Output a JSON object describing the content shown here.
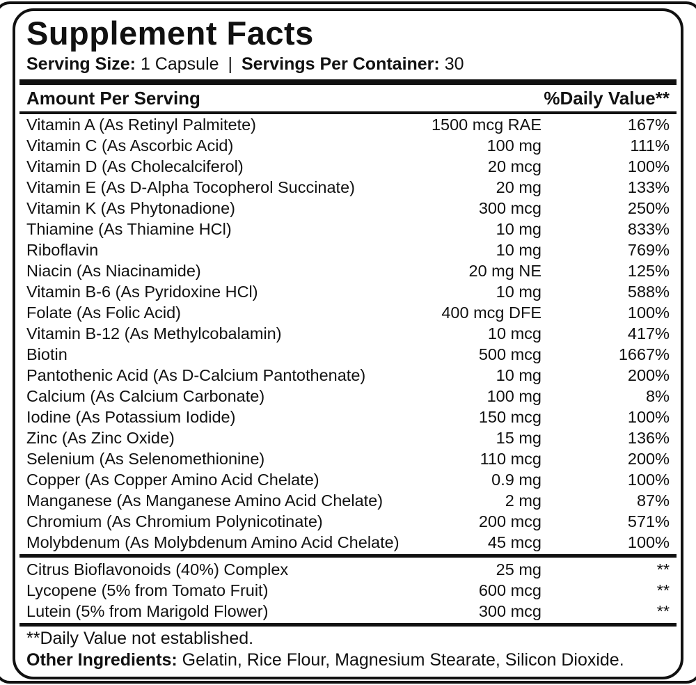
{
  "title": "Supplement Facts",
  "serving": {
    "size_label": "Serving Size:",
    "size_value": "1 Capsule",
    "separator": "|",
    "container_label": "Servings Per Container:",
    "container_value": "30"
  },
  "table": {
    "header_left": "Amount Per Serving",
    "header_right": "%Daily Value**",
    "nutrients": [
      {
        "name": "Vitamin A (As Retinyl Palmitete)",
        "amount": "1500 mcg RAE",
        "dv": "167%"
      },
      {
        "name": "Vitamin C (As Ascorbic Acid)",
        "amount": "100 mg",
        "dv": "111%"
      },
      {
        "name": "Vitamin D (As Cholecalciferol)",
        "amount": "20 mcg",
        "dv": "100%"
      },
      {
        "name": "Vitamin E (As D-Alpha Tocopherol Succinate)",
        "amount": "20 mg",
        "dv": "133%"
      },
      {
        "name": "Vitamin K (As Phytonadione)",
        "amount": "300 mcg",
        "dv": "250%"
      },
      {
        "name": "Thiamine (As Thiamine HCl)",
        "amount": "10 mg",
        "dv": "833%"
      },
      {
        "name": "Riboflavin",
        "amount": "10 mg",
        "dv": "769%"
      },
      {
        "name": "Niacin (As Niacinamide)",
        "amount": "20 mg NE",
        "dv": "125%"
      },
      {
        "name": "Vitamin B-6 (As Pyridoxine HCl)",
        "amount": "10 mg",
        "dv": "588%"
      },
      {
        "name": "Folate (As Folic Acid)",
        "amount": "400 mcg DFE",
        "dv": "100%"
      },
      {
        "name": "Vitamin B-12 (As Methylcobalamin)",
        "amount": "10 mcg",
        "dv": "417%"
      },
      {
        "name": "Biotin",
        "amount": "500 mcg",
        "dv": "1667%"
      },
      {
        "name": "Pantothenic Acid (As D-Calcium Pantothenate)",
        "amount": "10 mg",
        "dv": "200%"
      },
      {
        "name": "Calcium (As Calcium Carbonate)",
        "amount": "100 mg",
        "dv": "8%"
      },
      {
        "name": "Iodine (As Potassium Iodide)",
        "amount": "150 mcg",
        "dv": "100%"
      },
      {
        "name": "Zinc (As Zinc Oxide)",
        "amount": "15 mg",
        "dv": "136%"
      },
      {
        "name": "Selenium (As Selenomethionine)",
        "amount": "110 mcg",
        "dv": "200%"
      },
      {
        "name": "Copper (As Copper Amino Acid Chelate)",
        "amount": "0.9 mg",
        "dv": "100%"
      },
      {
        "name": "Manganese (As Manganese Amino Acid Chelate)",
        "amount": "2 mg",
        "dv": "87%"
      },
      {
        "name": "Chromium (As Chromium Polynicotinate)",
        "amount": "200 mcg",
        "dv": "571%"
      },
      {
        "name": "Molybdenum (As Molybdenum Amino Acid Chelate)",
        "amount": "45 mcg",
        "dv": "100%"
      }
    ],
    "botanicals": [
      {
        "name": "Citrus Bioflavonoids (40%) Complex",
        "amount": "25 mg",
        "dv": "**"
      },
      {
        "name": "Lycopene (5% from Tomato Fruit)",
        "amount": "600 mcg",
        "dv": "**"
      },
      {
        "name": "Lutein (5% from Marigold Flower)",
        "amount": "300 mcg",
        "dv": "**"
      }
    ]
  },
  "footnotes": {
    "dv_note": "**Daily Value not established.",
    "other_label": "Other Ingredients:",
    "other_value": "Gelatin, Rice Flour, Magnesium Stearate, Silicon Dioxide."
  },
  "colors": {
    "text": "#111111",
    "background": "#ffffff",
    "border": "#111111"
  }
}
